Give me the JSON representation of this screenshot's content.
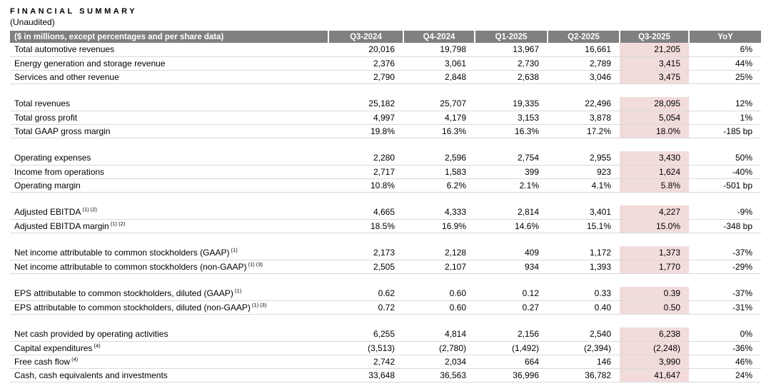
{
  "title": "FINANCIAL SUMMARY",
  "subtitle": "(Unaudited)",
  "table": {
    "colors": {
      "header_bg": "#808080",
      "header_text": "#ffffff",
      "highlight_bg": "#f2dcdb",
      "row_border": "#d9d9d9"
    },
    "highlight_column": "Q3-2025",
    "header": [
      "($ in millions, except percentages and per share data)",
      "Q3-2024",
      "Q4-2024",
      "Q1-2025",
      "Q2-2025",
      "Q3-2025",
      "YoY"
    ],
    "rows": [
      {
        "label": "Total automotive revenues",
        "sup": "",
        "values": [
          "20,016",
          "19,798",
          "13,967",
          "16,661",
          "21,205",
          "6%"
        ]
      },
      {
        "label": "Energy generation and storage revenue",
        "sup": "",
        "values": [
          "2,376",
          "3,061",
          "2,730",
          "2,789",
          "3,415",
          "44%"
        ]
      },
      {
        "label": "Services and other revenue",
        "sup": "",
        "values": [
          "2,790",
          "2,848",
          "2,638",
          "3,046",
          "3,475",
          "25%"
        ]
      },
      {
        "spacer": true
      },
      {
        "label": "Total revenues",
        "sup": "",
        "values": [
          "25,182",
          "25,707",
          "19,335",
          "22,496",
          "28,095",
          "12%"
        ]
      },
      {
        "label": "Total gross profit",
        "sup": "",
        "values": [
          "4,997",
          "4,179",
          "3,153",
          "3,878",
          "5,054",
          "1%"
        ]
      },
      {
        "label": "Total GAAP gross margin",
        "sup": "",
        "values": [
          "19.8%",
          "16.3%",
          "16.3%",
          "17.2%",
          "18.0%",
          "-185 bp"
        ]
      },
      {
        "spacer": true
      },
      {
        "label": "Operating expenses",
        "sup": "",
        "values": [
          "2,280",
          "2,596",
          "2,754",
          "2,955",
          "3,430",
          "50%"
        ]
      },
      {
        "label": "Income from operations",
        "sup": "",
        "values": [
          "2,717",
          "1,583",
          "399",
          "923",
          "1,624",
          "-40%"
        ]
      },
      {
        "label": "Operating margin",
        "sup": "",
        "values": [
          "10.8%",
          "6.2%",
          "2.1%",
          "4.1%",
          "5.8%",
          "-501 bp"
        ]
      },
      {
        "spacer": true
      },
      {
        "label": "Adjusted EBITDA",
        "sup": "(1) (2)",
        "values": [
          "4,665",
          "4,333",
          "2,814",
          "3,401",
          "4,227",
          "-9%"
        ]
      },
      {
        "label": "Adjusted EBITDA margin",
        "sup": "(1) (2)",
        "values": [
          "18.5%",
          "16.9%",
          "14.6%",
          "15.1%",
          "15.0%",
          "-348 bp"
        ]
      },
      {
        "spacer": true
      },
      {
        "label": "Net income attributable to common stockholders (GAAP)",
        "sup": "(1)",
        "values": [
          "2,173",
          "2,128",
          "409",
          "1,172",
          "1,373",
          "-37%"
        ]
      },
      {
        "label": "Net income attributable to common stockholders (non-GAAP)",
        "sup": "(1) (3)",
        "values": [
          "2,505",
          "2,107",
          "934",
          "1,393",
          "1,770",
          "-29%"
        ]
      },
      {
        "spacer": true
      },
      {
        "label": "EPS attributable to common stockholders, diluted (GAAP)",
        "sup": "(1)",
        "values": [
          "0.62",
          "0.60",
          "0.12",
          "0.33",
          "0.39",
          "-37%"
        ]
      },
      {
        "label": "EPS attributable to common stockholders, diluted (non-GAAP)",
        "sup": "(1) (3)",
        "values": [
          "0.72",
          "0.60",
          "0.27",
          "0.40",
          "0.50",
          "-31%"
        ]
      },
      {
        "spacer": true
      },
      {
        "label": "Net cash provided by operating activities",
        "sup": "",
        "values": [
          "6,255",
          "4,814",
          "2,156",
          "2,540",
          "6,238",
          "0%"
        ]
      },
      {
        "label": "Capital expenditures",
        "sup": "(4)",
        "values": [
          "(3,513)",
          "(2,780)",
          "(1,492)",
          "(2,394)",
          "(2,248)",
          "-36%"
        ]
      },
      {
        "label": "Free cash flow",
        "sup": "(4)",
        "values": [
          "2,742",
          "2,034",
          "664",
          "146",
          "3,990",
          "46%"
        ]
      },
      {
        "label": "Cash, cash equivalents and investments",
        "sup": "",
        "values": [
          "33,648",
          "36,563",
          "36,996",
          "36,782",
          "41,647",
          "24%"
        ]
      }
    ]
  }
}
